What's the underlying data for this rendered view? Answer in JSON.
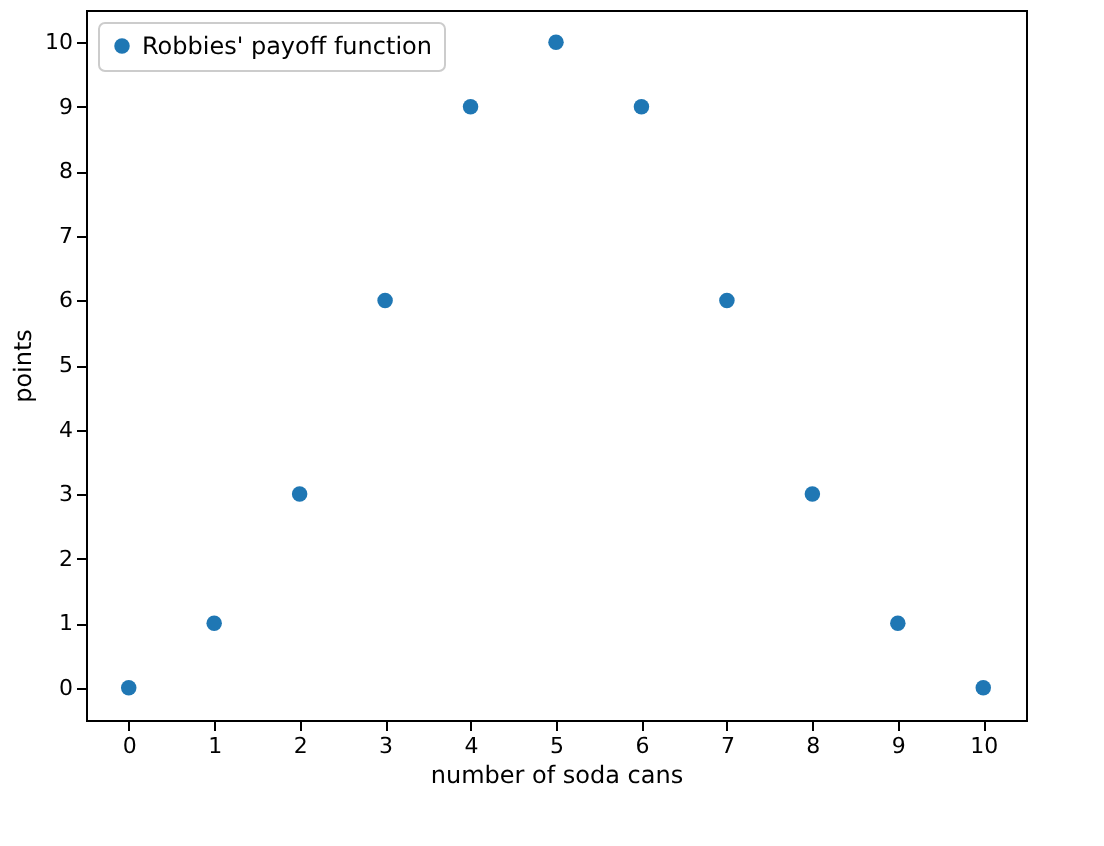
{
  "chart_data": {
    "type": "scatter",
    "xlabel": "number of soda cans",
    "ylabel": "points",
    "x": [
      0,
      1,
      2,
      3,
      4,
      5,
      6,
      7,
      8,
      9,
      10
    ],
    "series": [
      {
        "name": "Robbies' payoff function",
        "color": "#1f77b4",
        "values": [
          0,
          1,
          3,
          6,
          9,
          10,
          9,
          6,
          3,
          1,
          0
        ]
      }
    ],
    "xlim": [
      -0.5,
      10.5
    ],
    "ylim": [
      -0.5,
      10.5
    ],
    "xticks": [
      0,
      1,
      2,
      3,
      4,
      5,
      6,
      7,
      8,
      9,
      10
    ],
    "yticks": [
      0,
      1,
      2,
      3,
      4,
      5,
      6,
      7,
      8,
      9,
      10
    ],
    "grid": false,
    "legend": "top left",
    "marker": "circle"
  }
}
